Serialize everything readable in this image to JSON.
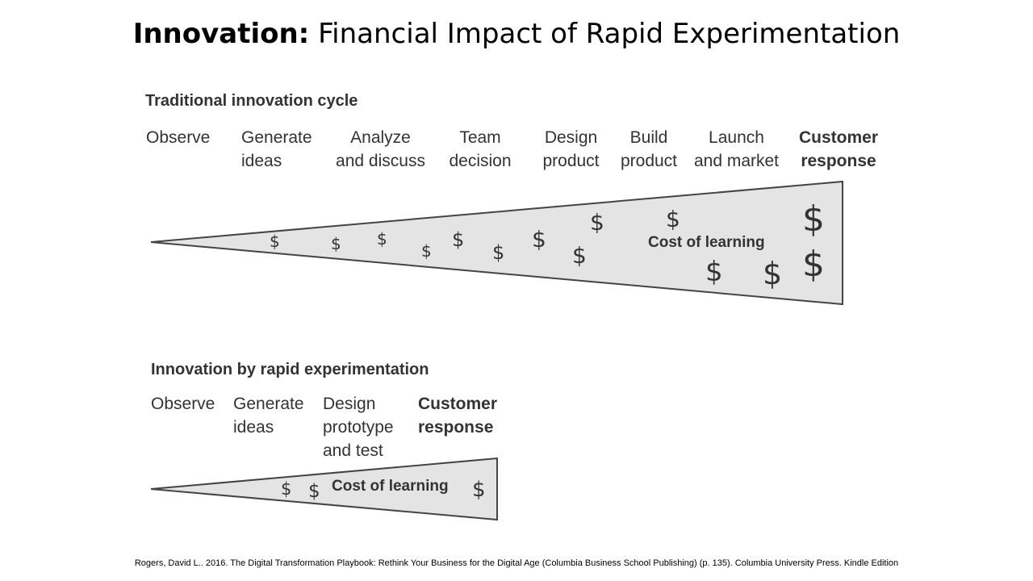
{
  "title": {
    "bold": "Innovation:",
    "rest": " Financial Impact of Rapid Experimentation"
  },
  "traditional": {
    "heading": "Traditional innovation cycle",
    "steps": [
      {
        "line1": "Observe",
        "line2": ""
      },
      {
        "line1": "Generate",
        "line2": "ideas"
      },
      {
        "line1": "Analyze",
        "line2": "and discuss"
      },
      {
        "line1": "Team",
        "line2": "decision"
      },
      {
        "line1": "Design",
        "line2": "product"
      },
      {
        "line1": "Build",
        "line2": "product"
      },
      {
        "line1": "Launch",
        "line2": "and market"
      },
      {
        "line1": "Customer",
        "line2": "response"
      }
    ],
    "wedge_label": "Cost of learning",
    "dollar_symbol": "$"
  },
  "rapid": {
    "heading": "Innovation by rapid experimentation",
    "steps": [
      {
        "line1": "Observe",
        "line2": "",
        "line3": ""
      },
      {
        "line1": "Generate",
        "line2": "ideas",
        "line3": ""
      },
      {
        "line1": "Design",
        "line2": "prototype",
        "line3": "and test"
      },
      {
        "line1": "Customer",
        "line2": "response",
        "line3": ""
      }
    ],
    "wedge_label": "Cost of learning",
    "dollar_symbol": "$"
  },
  "citation": "Rogers, David L.. 2016. The Digital Transformation Playbook: Rethink Your Business for the Digital Age (Columbia Business School Publishing) (p. 135). Columbia University Press. Kindle Edition",
  "colors": {
    "wedge_fill": "#e4e4e4",
    "wedge_stroke": "#444444",
    "text": "#333333"
  }
}
